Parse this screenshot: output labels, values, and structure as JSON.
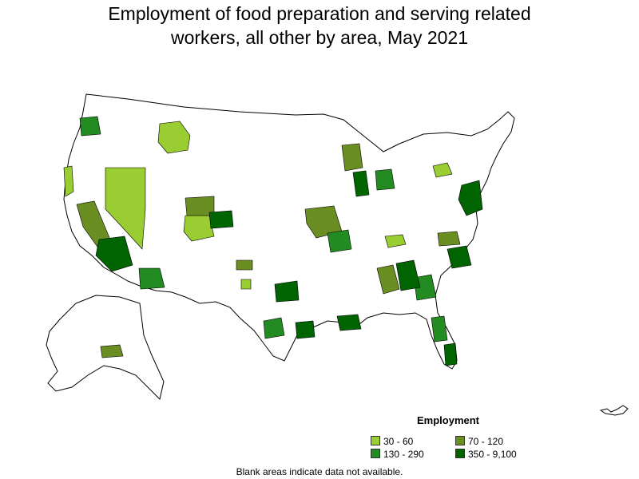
{
  "title_line1": "Employment of food preparation and serving related",
  "title_line2": "workers, all other by area, May 2021",
  "legend": {
    "title": "Employment",
    "items": [
      {
        "label": "30 - 60",
        "color": "#9acd32"
      },
      {
        "label": "70 - 120",
        "color": "#6b8e23"
      },
      {
        "label": "130 - 290",
        "color": "#228b22"
      },
      {
        "label": "350 - 9,100",
        "color": "#006400"
      }
    ]
  },
  "footnote": "Blank areas indicate data not available.",
  "colors": {
    "outline": "#000000",
    "background": "#ffffff"
  }
}
